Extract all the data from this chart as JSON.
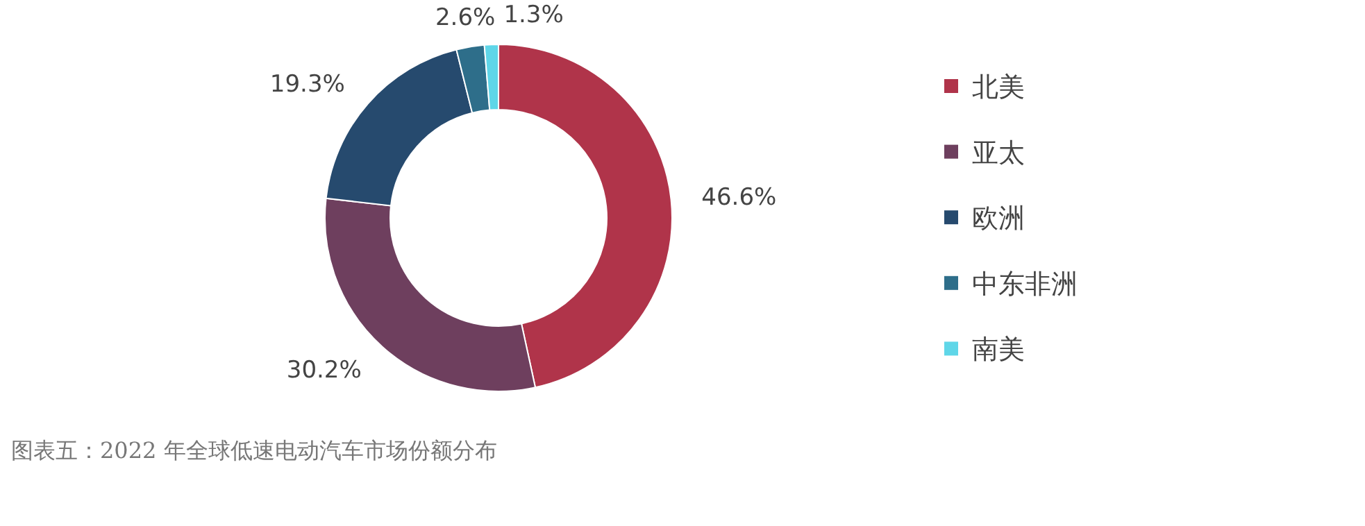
{
  "chart_data": {
    "type": "donut",
    "categories": [
      "北美",
      "亚太",
      "欧洲",
      "中东非洲",
      "南美"
    ],
    "values": [
      46.6,
      30.2,
      19.3,
      2.6,
      1.3
    ],
    "colors": [
      "#b0344a",
      "#6e3f5e",
      "#264a6e",
      "#2e6e8a",
      "#5fd6e8"
    ],
    "value_labels": [
      "46.6%",
      "30.2%",
      "19.3%",
      "2.6%",
      "1.3%"
    ],
    "legend": "right",
    "annotations": [
      "图表五：2022 年全球低速电动汽车市场份额分布"
    ]
  }
}
